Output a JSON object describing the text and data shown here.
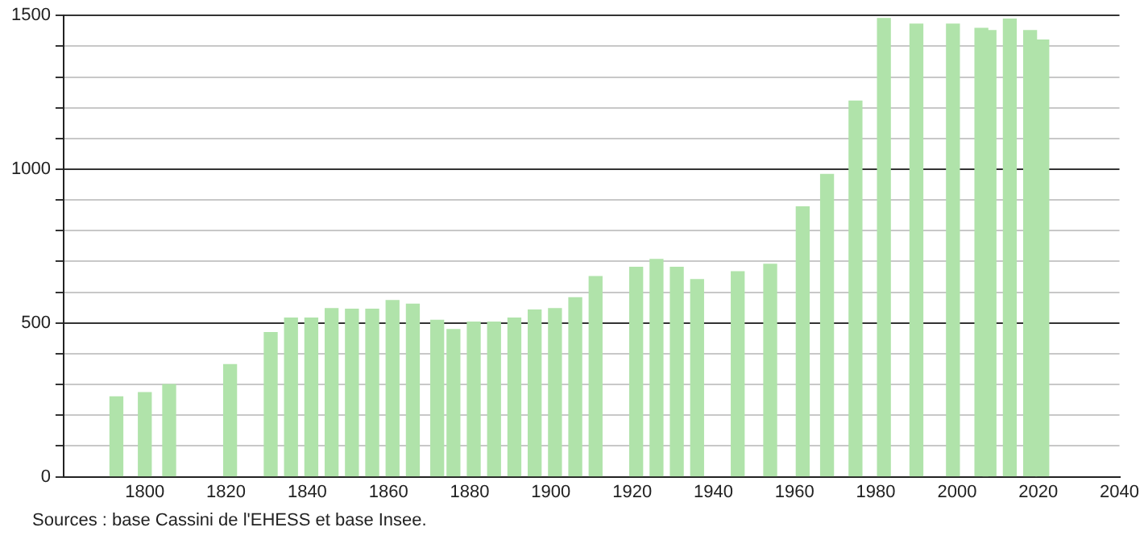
{
  "chart_data": {
    "type": "bar",
    "x": [
      1793,
      1800,
      1806,
      1821,
      1831,
      1836,
      1841,
      1846,
      1851,
      1856,
      1861,
      1866,
      1872,
      1876,
      1881,
      1886,
      1891,
      1896,
      1901,
      1906,
      1911,
      1921,
      1926,
      1931,
      1936,
      1946,
      1954,
      1962,
      1968,
      1975,
      1982,
      1990,
      1999,
      2006,
      2008,
      2013,
      2018,
      2021
    ],
    "values": [
      260,
      274,
      300,
      365,
      469,
      516,
      516,
      547,
      545,
      545,
      573,
      561,
      509,
      479,
      503,
      503,
      516,
      542,
      547,
      582,
      651,
      681,
      707,
      681,
      641,
      667,
      691,
      878,
      983,
      1222,
      1490,
      1472,
      1472,
      1458,
      1451,
      1488,
      1451,
      1420
    ],
    "color": "#b0e3aa",
    "xlim": [
      1780,
      2040
    ],
    "xticks": [
      1800,
      1820,
      1840,
      1860,
      1880,
      1900,
      1920,
      1940,
      1960,
      1980,
      2000,
      2020,
      2040
    ],
    "ylim": [
      0,
      1500
    ],
    "yticks": [
      0,
      {
        "value": 100,
        "label": null
      },
      {
        "value": 200,
        "label": null
      },
      {
        "value": 300,
        "label": null
      },
      {
        "value": 400,
        "label": null
      },
      500,
      {
        "value": 600,
        "label": null
      },
      {
        "value": 700,
        "label": null
      },
      {
        "value": 800,
        "label": null
      },
      {
        "value": 900,
        "label": null
      },
      1000,
      {
        "value": 1100,
        "label": null
      },
      {
        "value": 1200,
        "label": null
      },
      {
        "value": 1300,
        "label": null
      },
      {
        "value": 1400,
        "label": null
      },
      1500
    ],
    "grid": "y",
    "annotations": [
      "Sources : base Cassini de l'EHESS et base Insee."
    ]
  }
}
